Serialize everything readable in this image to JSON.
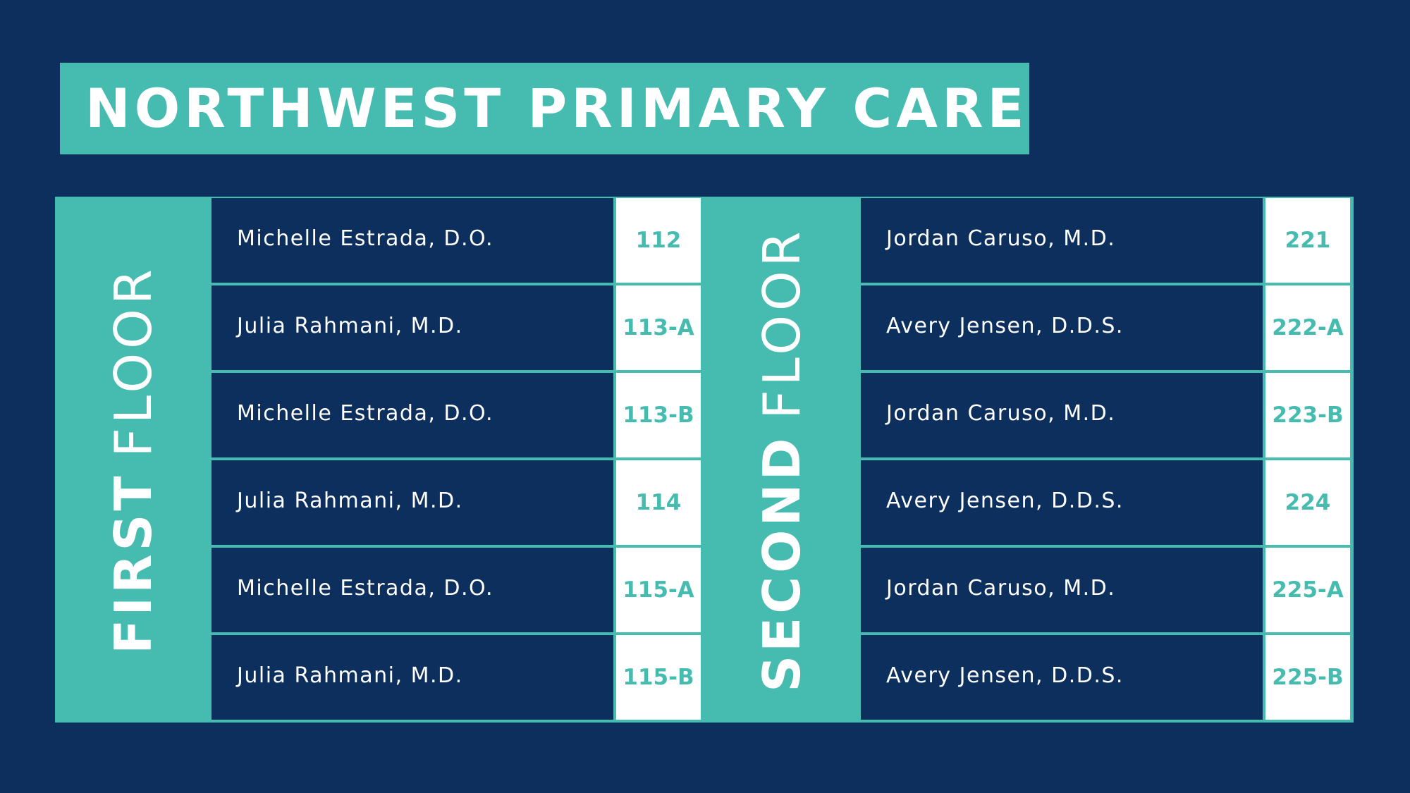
{
  "header": {
    "title": "NORTHWEST PRIMARY CARE"
  },
  "floors": [
    {
      "label_strong": "FIRST",
      "label_light": "FLOOR",
      "rows": [
        {
          "name": "Michelle Estrada, D.O.",
          "room": "112"
        },
        {
          "name": "Julia Rahmani, M.D.",
          "room": "113-A"
        },
        {
          "name": "Michelle Estrada, D.O.",
          "room": "113-B"
        },
        {
          "name": "Julia Rahmani, M.D.",
          "room": "114"
        },
        {
          "name": "Michelle Estrada, D.O.",
          "room": "115-A"
        },
        {
          "name": "Julia Rahmani, M.D.",
          "room": "115-B"
        }
      ]
    },
    {
      "label_strong": "SECOND",
      "label_light": "FLOOR",
      "rows": [
        {
          "name": "Jordan Caruso, M.D.",
          "room": "221"
        },
        {
          "name": "Avery Jensen, D.D.S.",
          "room": "222-A"
        },
        {
          "name": "Jordan Caruso, M.D.",
          "room": "223-B"
        },
        {
          "name": "Avery Jensen, D.D.S.",
          "room": "224"
        },
        {
          "name": "Jordan Caruso, M.D.",
          "room": "225-A"
        },
        {
          "name": "Avery Jensen, D.D.S.",
          "room": "225-B"
        }
      ]
    }
  ],
  "colors": {
    "background": "#0d2f5e",
    "accent": "#46bcb0",
    "room_cell": "#ffffff",
    "text_light": "#ffffff"
  }
}
